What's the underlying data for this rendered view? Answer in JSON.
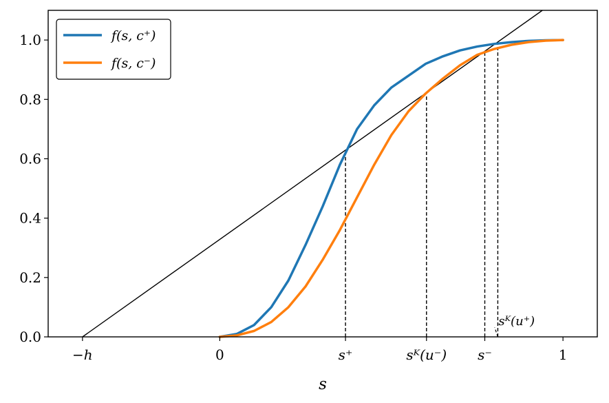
{
  "chart_data": {
    "type": "line",
    "xlabel": "s",
    "xlim": [
      -0.5,
      1.1
    ],
    "ylim": [
      0,
      1.1
    ],
    "grid": false,
    "legend_position": "top-left",
    "x_ticks": [
      {
        "value": -0.4,
        "label": "−h"
      },
      {
        "value": 0,
        "label": "0"
      },
      {
        "value": 0.3663,
        "label": "s⁺"
      },
      {
        "value": 0.6023,
        "label": "sᴷ(u⁻)"
      },
      {
        "value": 0.7722,
        "label": "s⁻"
      },
      {
        "value": 1,
        "label": "1"
      }
    ],
    "y_ticks": [
      {
        "value": 0,
        "label": "0.0"
      },
      {
        "value": 0.2,
        "label": "0.2"
      },
      {
        "value": 0.4,
        "label": "0.4"
      },
      {
        "value": 0.6,
        "label": "0.6"
      },
      {
        "value": 0.8,
        "label": "0.8"
      },
      {
        "value": 1.0,
        "label": "1.0"
      }
    ],
    "series": [
      {
        "name": "f(s, c⁺)",
        "color": "#1f77b4",
        "x": [
          0,
          0.05,
          0.1,
          0.15,
          0.2,
          0.25,
          0.3,
          0.35,
          0.4,
          0.45,
          0.5,
          0.55,
          0.6,
          0.65,
          0.7,
          0.75,
          0.8,
          0.85,
          0.9,
          0.95,
          1.0
        ],
        "y": [
          0,
          0.01,
          0.04,
          0.1,
          0.19,
          0.31,
          0.44,
          0.58,
          0.7,
          0.78,
          0.84,
          0.88,
          0.92,
          0.945,
          0.965,
          0.978,
          0.987,
          0.993,
          0.997,
          0.999,
          1.0
        ]
      },
      {
        "name": "f(s, c⁻)",
        "color": "#ff7f0e",
        "x": [
          0,
          0.05,
          0.1,
          0.15,
          0.2,
          0.25,
          0.3,
          0.35,
          0.4,
          0.45,
          0.5,
          0.55,
          0.6,
          0.65,
          0.7,
          0.75,
          0.8,
          0.85,
          0.9,
          0.95,
          1.0
        ],
        "y": [
          0,
          0.005,
          0.02,
          0.05,
          0.1,
          0.17,
          0.26,
          0.36,
          0.47,
          0.58,
          0.68,
          0.76,
          0.82,
          0.87,
          0.915,
          0.95,
          0.97,
          0.984,
          0.993,
          0.998,
          1.0
        ]
      }
    ],
    "reference_line": {
      "x": [
        -0.4,
        0.94
      ],
      "y": [
        0,
        1.1
      ],
      "color": "#000000"
    },
    "dashed_verticals": [
      {
        "x": 0.3663,
        "y_top": 0.63
      },
      {
        "x": 0.6023,
        "y_top": 0.815
      },
      {
        "x": 0.7722,
        "y_top": 0.96
      },
      {
        "x": 0.8101,
        "y_top": 0.985
      }
    ],
    "annotation": {
      "label": "sᴷ(u⁺)",
      "x": 0.8101,
      "y": 0.0,
      "text_x": 0.865,
      "text_y": 0.06
    }
  }
}
